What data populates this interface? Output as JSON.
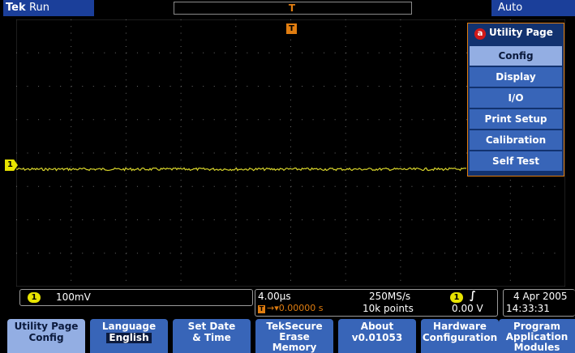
{
  "topbar": {
    "logo": "Tek",
    "run_state": "Run",
    "trigger_marker": "T",
    "trigger_mode": "Auto"
  },
  "graticule": {
    "trigger_position_label": "T",
    "ch1_ground_label": "1",
    "trace_color": "#d6d22a"
  },
  "side_menu": {
    "title_icon": "a",
    "title": "Utility Page",
    "items": [
      "Config",
      "Display",
      "I/O",
      "Print Setup",
      "Calibration",
      "Self Test"
    ],
    "selected_index": 0
  },
  "readouts": {
    "channel": {
      "badge": "1",
      "scale": "100mV"
    },
    "timebase": {
      "horizontal_scale": "4.00µs",
      "sample_rate": "250MS/s",
      "delay_badge": "T",
      "delay": "→▾0.00000 s",
      "record_length": "10k points",
      "trigger_source_badge": "1",
      "trigger_slope": "∫",
      "trigger_level": "0.00 V"
    },
    "datetime": {
      "date": "4 Apr 2005",
      "time": "14:33:31"
    }
  },
  "bottom_menu": [
    {
      "line1": "Utility Page",
      "line2": "Config",
      "selected": true
    },
    {
      "line1": "Language",
      "line2": "English",
      "inset": true
    },
    {
      "line1": "Set Date",
      "line2": "& Time"
    },
    {
      "line1": "TekSecure",
      "line2": "Erase",
      "line3": "Memory"
    },
    {
      "line1": "About",
      "line2": "v0.01053"
    },
    {
      "line1": "Hardware",
      "line2": "Configuration"
    },
    {
      "line1": "Program",
      "line2": "Application",
      "line3": "Modules"
    }
  ],
  "colors": {
    "menu_blue": "#3865b8",
    "menu_selected": "#93aee3",
    "trigger_orange": "#e07d10",
    "ch1_yellow": "#e8e400"
  }
}
